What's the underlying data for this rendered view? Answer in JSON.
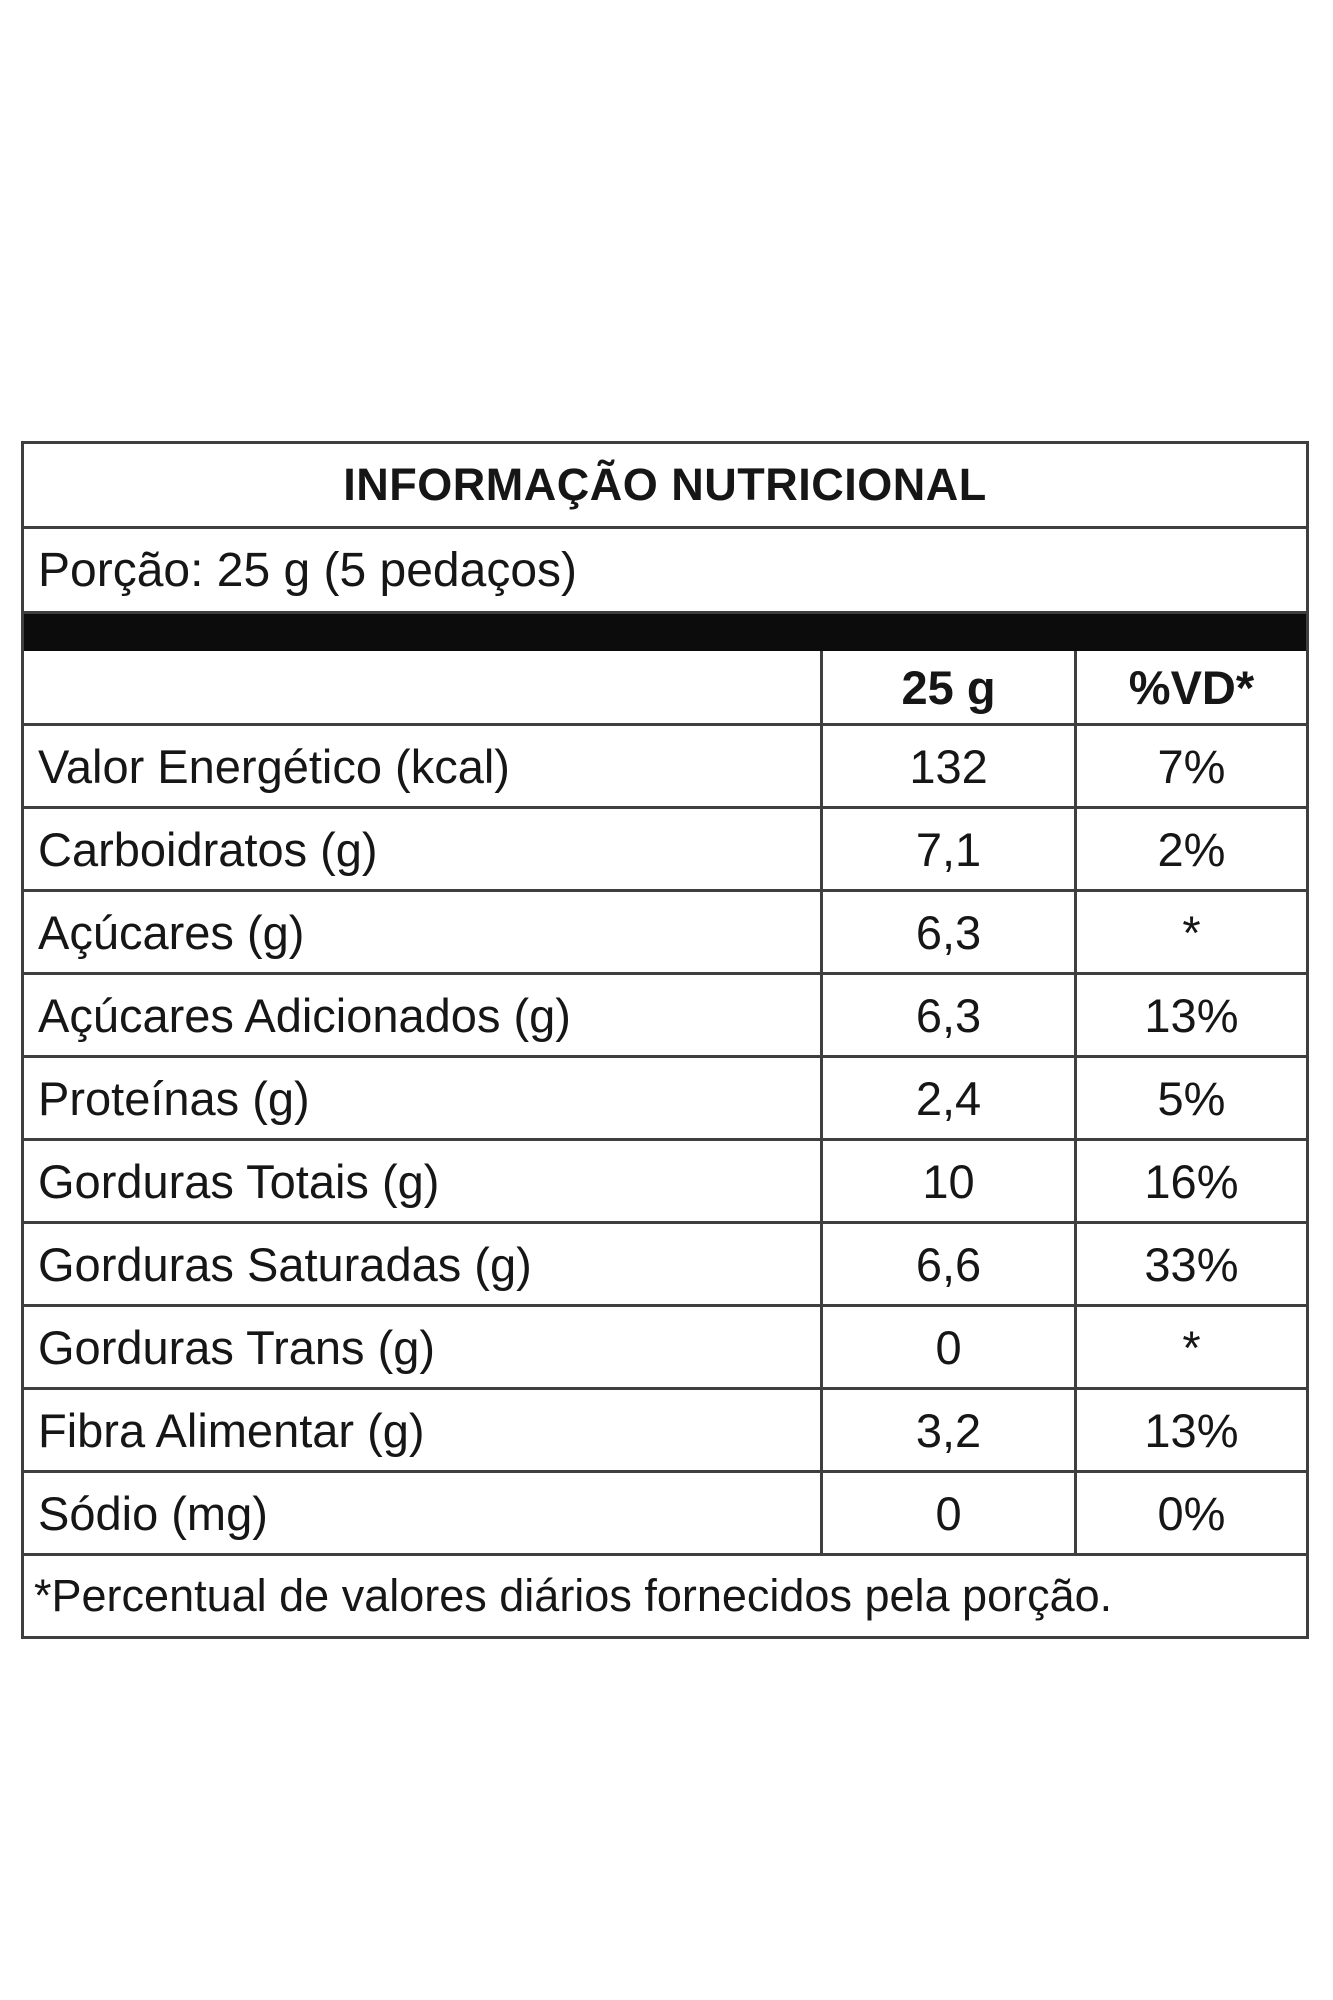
{
  "label": {
    "title": "INFORMAÇÃO NUTRICIONAL",
    "serving_line": "Porção: 25 g (5 pedaços)",
    "column_headers": {
      "amount": "25 g",
      "daily_value": "%VD*"
    },
    "rows": [
      {
        "label": "Valor Energético (kcal)",
        "amount": "132",
        "dv": "7%"
      },
      {
        "label": "Carboidratos (g)",
        "amount": "7,1",
        "dv": "2%"
      },
      {
        "label": "Açúcares (g)",
        "amount": "6,3",
        "dv": "*"
      },
      {
        "label": "Açúcares Adicionados (g)",
        "amount": "6,3",
        "dv": "13%"
      },
      {
        "label": "Proteínas (g)",
        "amount": "2,4",
        "dv": "5%"
      },
      {
        "label": "Gorduras Totais (g)",
        "amount": "10",
        "dv": "16%"
      },
      {
        "label": "Gorduras Saturadas (g)",
        "amount": "6,6",
        "dv": "33%"
      },
      {
        "label": "Gorduras Trans (g)",
        "amount": "0",
        "dv": "*"
      },
      {
        "label": "Fibra Alimentar (g)",
        "amount": "3,2",
        "dv": "13%"
      },
      {
        "label": "Sódio (mg)",
        "amount": "0",
        "dv": "0%"
      }
    ],
    "footnote": "*Percentual de valores diários fornecidos pela porção.",
    "colors": {
      "border": "#3f3f3f",
      "separator_bar": "#0c0c0c",
      "text": "#161616",
      "background": "#ffffff"
    }
  }
}
